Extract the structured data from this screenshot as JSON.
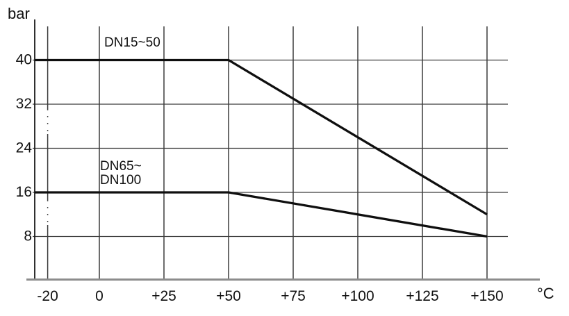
{
  "chart_data": {
    "type": "line",
    "title": "",
    "ylabel": "bar",
    "xlabel": "°C",
    "grid": true,
    "legend_position": "inline-labels",
    "x_ticks": [
      {
        "v": -20,
        "label": "-20"
      },
      {
        "v": 0,
        "label": "0"
      },
      {
        "v": 25,
        "label": "+25"
      },
      {
        "v": 50,
        "label": "+50"
      },
      {
        "v": 75,
        "label": "+75"
      },
      {
        "v": 100,
        "label": "+100"
      },
      {
        "v": 125,
        "label": "+125"
      },
      {
        "v": 150,
        "label": "+150"
      }
    ],
    "y_ticks": [
      {
        "v": 40,
        "label": "40"
      },
      {
        "v": 32,
        "label": "32"
      },
      {
        "v": 24,
        "label": "24"
      },
      {
        "v": 16,
        "label": "16"
      },
      {
        "v": 8,
        "label": "8"
      }
    ],
    "x_range_labeled": [
      -20,
      150
    ],
    "y_range_gridlines": [
      8,
      40
    ],
    "series": [
      {
        "name": "DN15~50",
        "label": "DN15~50",
        "points": [
          [
            -20,
            40
          ],
          [
            50,
            40
          ],
          [
            150,
            12
          ]
        ]
      },
      {
        "name": "DN65~DN100",
        "label_lines": [
          "DN65~",
          "DN100"
        ],
        "points": [
          [
            -20,
            16
          ],
          [
            50,
            16
          ],
          [
            150,
            8
          ]
        ]
      }
    ],
    "annotations": {
      "lines_extend_to_left_axis": true,
      "minus20_gridline_partially_dotted": true
    },
    "colors": {
      "data_line": "#0f0f0f",
      "grid_line": "#3c3c3c",
      "bottom_axis": "#8c8c8c",
      "y_axis": "#1a1a1a",
      "text": "#111111"
    }
  }
}
